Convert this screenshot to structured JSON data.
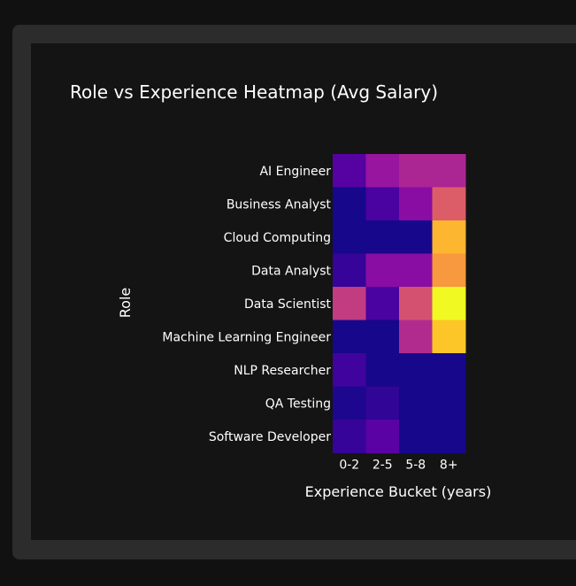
{
  "chart_data": {
    "type": "heatmap",
    "title": "Role vs Experience Heatmap (Avg Salary)",
    "xlabel": "Experience Bucket (years)",
    "ylabel": "Role",
    "x": [
      "0-2",
      "2-5",
      "5-8",
      "8+"
    ],
    "y": [
      "AI Engineer",
      "Business Analyst",
      "Cloud Computing",
      "Data Analyst",
      "Data Scientist",
      "Machine Learning Engineer",
      "NLP Researcher",
      "QA Testing",
      "Software Developer"
    ],
    "z_relative": [
      [
        0.15,
        0.32,
        0.38,
        0.38
      ],
      [
        0.02,
        0.12,
        0.28,
        0.58
      ],
      [
        0.02,
        0.02,
        0.02,
        0.84
      ],
      [
        0.08,
        0.28,
        0.28,
        0.76
      ],
      [
        0.46,
        0.12,
        0.54,
        1.0
      ],
      [
        0.02,
        0.02,
        0.4,
        0.88
      ],
      [
        0.1,
        0.02,
        0.02,
        0.02
      ],
      [
        0.03,
        0.07,
        0.02,
        0.02
      ],
      [
        0.08,
        0.16,
        0.02,
        0.02
      ]
    ],
    "colorscale": "plasma",
    "background": "#141414"
  }
}
